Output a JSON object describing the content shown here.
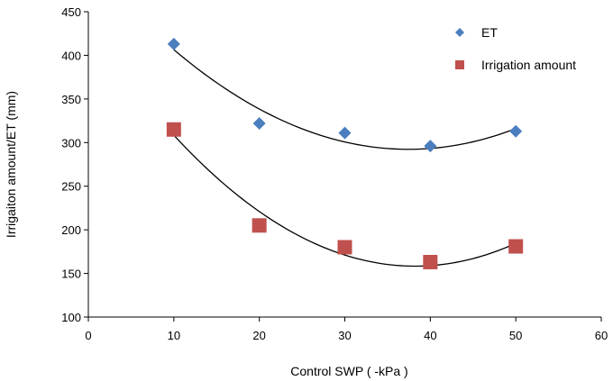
{
  "chart_data": {
    "type": "scatter",
    "xlabel": "Control SWP ( -kPa )",
    "ylabel": "Irrigaiton amount/ET (mm)",
    "xlim": [
      0,
      60
    ],
    "ylim": [
      100,
      450
    ],
    "xticks": [
      0,
      10,
      20,
      30,
      40,
      50,
      60
    ],
    "yticks": [
      100,
      150,
      200,
      250,
      300,
      350,
      400,
      450
    ],
    "grid": false,
    "legend_position": "top-right",
    "series": [
      {
        "name": "ET",
        "marker": "diamond",
        "color": "#4a7ebf",
        "x": [
          10,
          20,
          30,
          40,
          50
        ],
        "y": [
          413,
          322,
          311,
          296,
          313
        ],
        "trendline": "polynomial-2"
      },
      {
        "name": "Irrigation amount",
        "marker": "square",
        "color": "#c0504d",
        "x": [
          10,
          20,
          30,
          40,
          50
        ],
        "y": [
          315,
          205,
          180,
          163,
          181
        ],
        "trendline": "polynomial-2"
      }
    ]
  }
}
